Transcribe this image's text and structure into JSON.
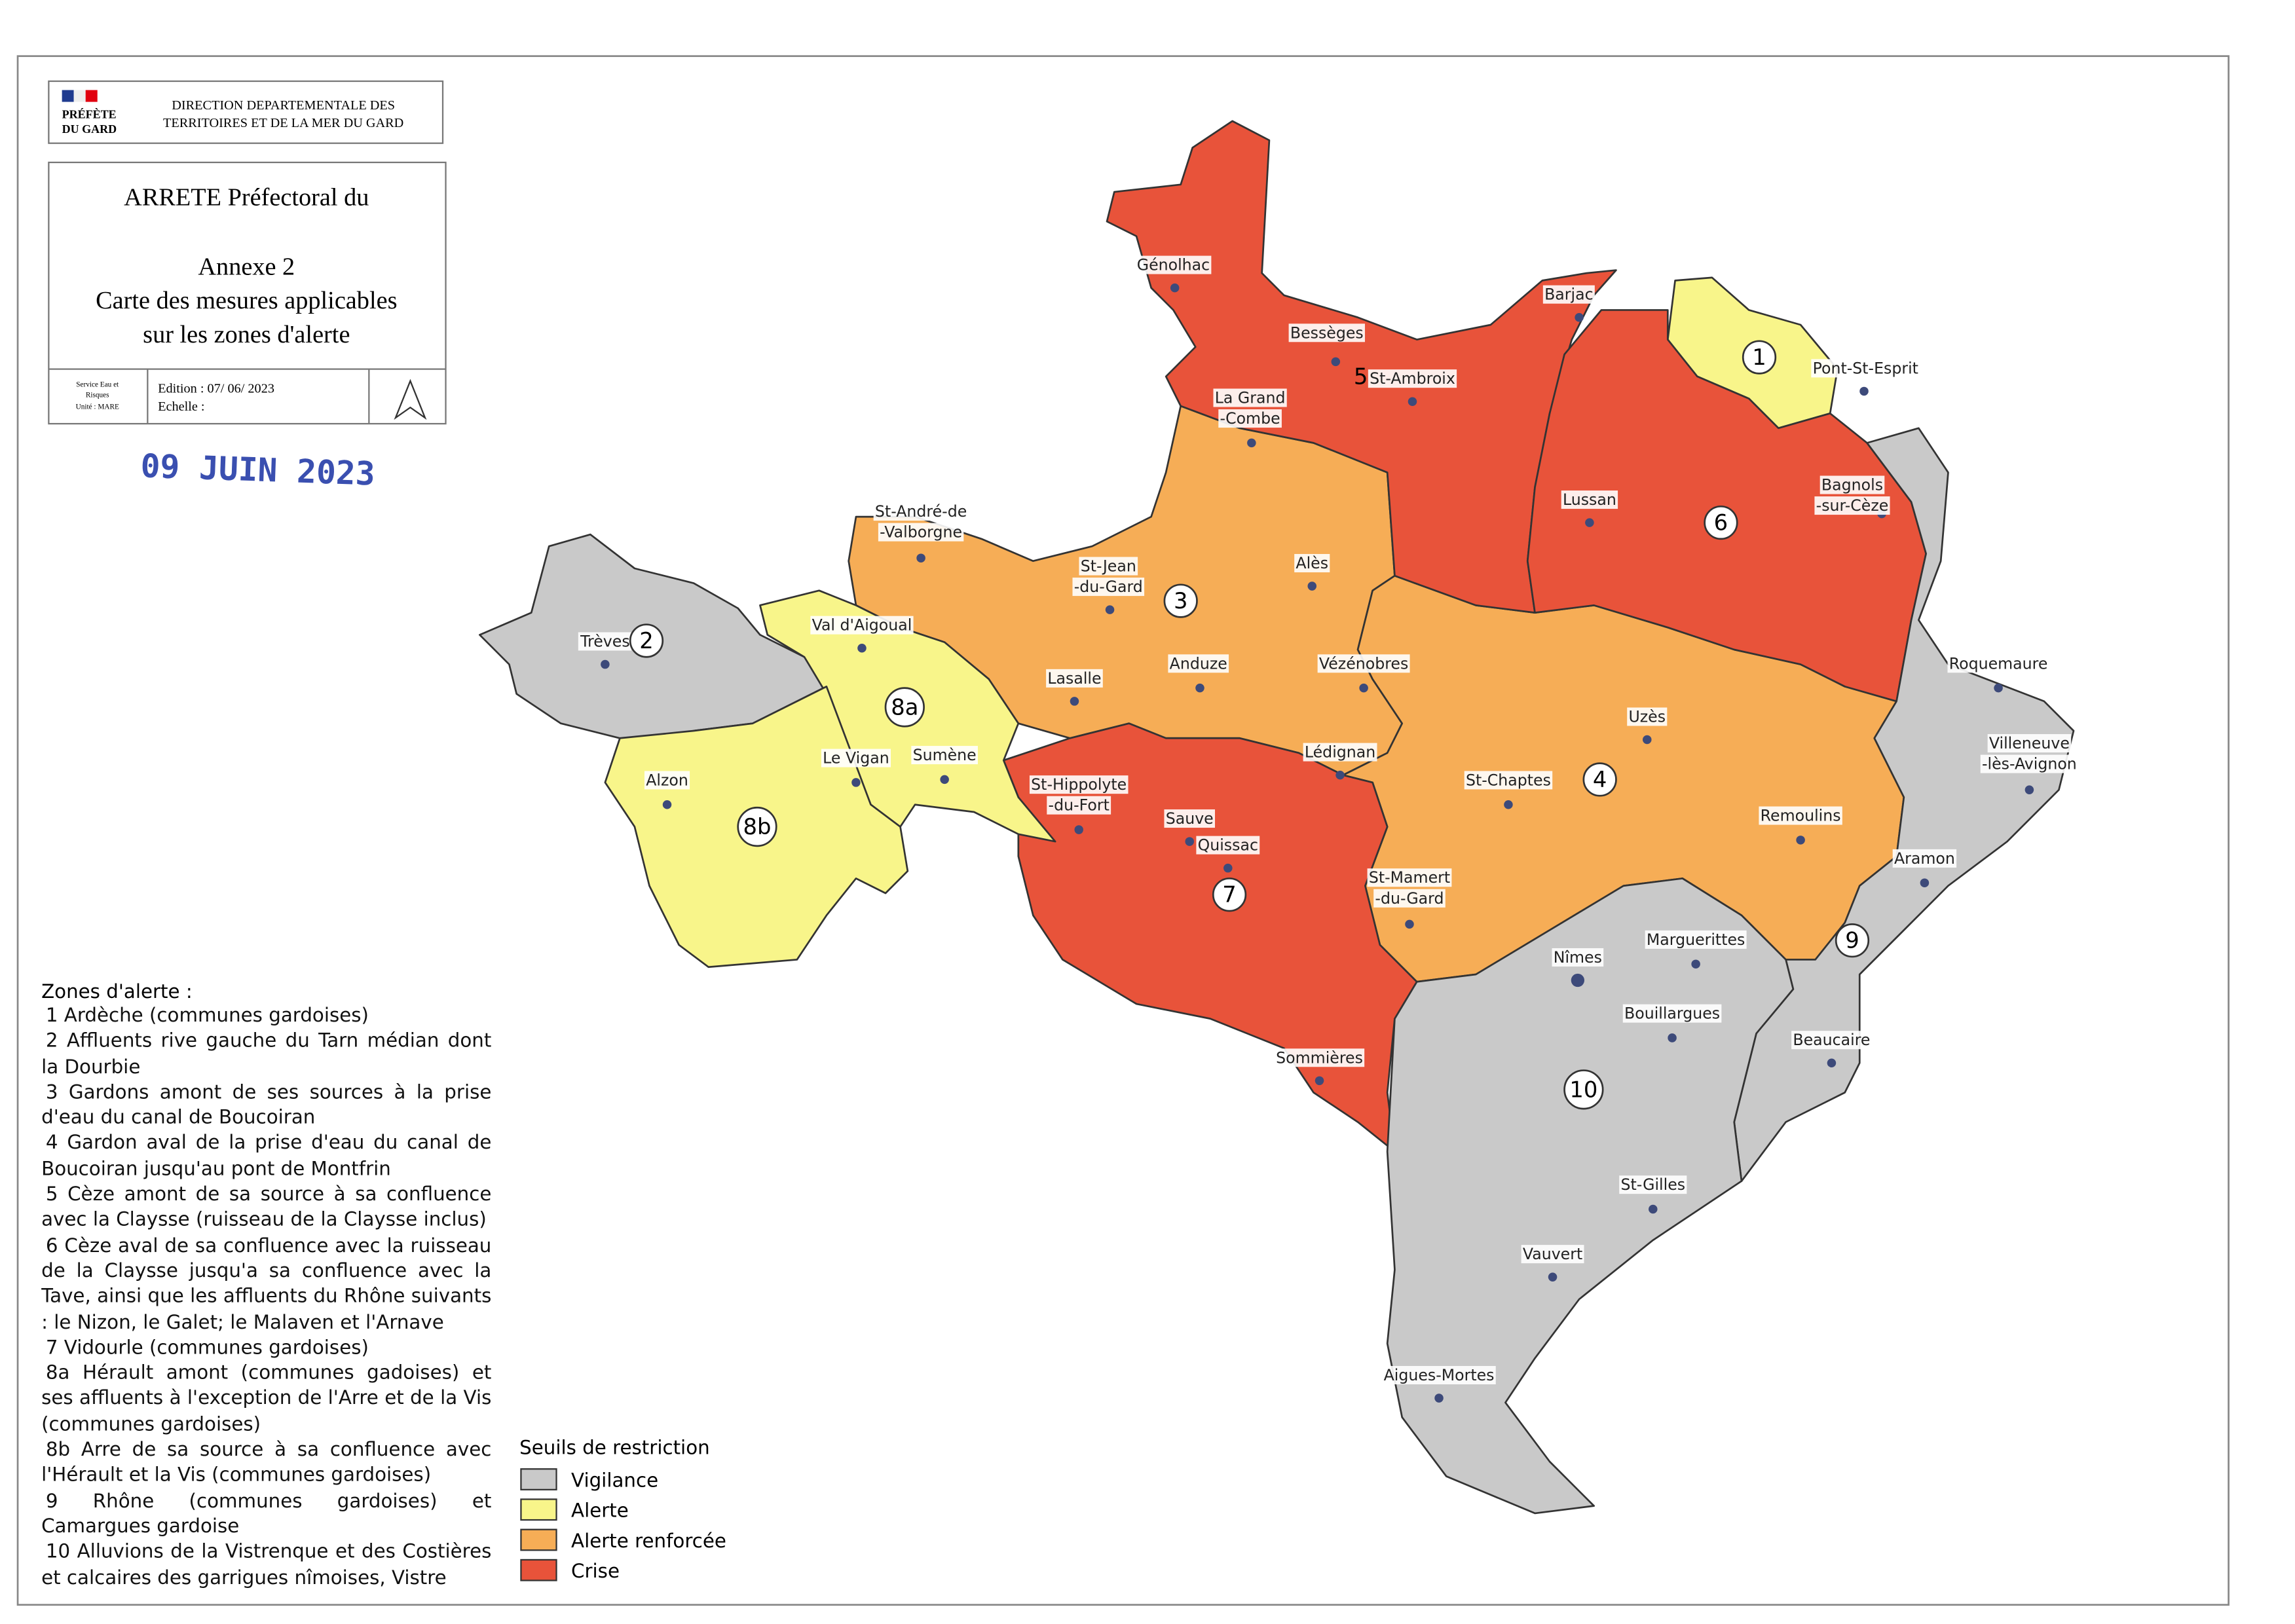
{
  "header": {
    "logo": [
      "PRÉFÈTE",
      "DU GARD"
    ],
    "direction": [
      "DIRECTION DEPARTEMENTALE DES",
      "TERRITOIRES ET DE LA MER DU GARD"
    ]
  },
  "title_block": {
    "arrete": "ARRETE Préfectoral du",
    "annexe": "Annexe 2",
    "title": [
      "Carte des mesures applicables",
      "sur les zones d'alerte"
    ],
    "service": [
      "Service Eau et",
      "Risques",
      "Unité : MARE"
    ],
    "edition": "Edition : 07/ 06/ 2023",
    "echelle": "Echelle :"
  },
  "stamp": "09 JUIN 2023",
  "zones": [
    {
      "label": "1",
      "color": "#f8f58a"
    },
    {
      "label": "2",
      "color": "#c9c9c9"
    },
    {
      "label": "3",
      "color": "#f6ad56"
    },
    {
      "label": "4",
      "color": "#f6ad56"
    },
    {
      "label": "5",
      "color": "#e8533a"
    },
    {
      "label": "6",
      "color": "#e8533a"
    },
    {
      "label": "7",
      "color": "#e8533a"
    },
    {
      "label": "8a",
      "color": "#f8f58a"
    },
    {
      "label": "8b",
      "color": "#f8f58a"
    },
    {
      "label": "9",
      "color": "#c9c9c9"
    },
    {
      "label": "10",
      "color": "#c9c9c9"
    }
  ],
  "towns": [
    {
      "lines": [
        "Génolhac"
      ]
    },
    {
      "lines": [
        "Bessèges"
      ]
    },
    {
      "lines": [
        "St-Ambroix"
      ]
    },
    {
      "lines": [
        "Barjac"
      ]
    },
    {
      "lines": [
        "Pont-St-Esprit"
      ]
    },
    {
      "lines": [
        "La Grand",
        "-Combe"
      ]
    },
    {
      "lines": [
        "St-André-de",
        "-Valborgne"
      ]
    },
    {
      "lines": [
        "St-Jean",
        "-du-Gard"
      ]
    },
    {
      "lines": [
        "Alès"
      ]
    },
    {
      "lines": [
        "Lussan"
      ]
    },
    {
      "lines": [
        "Bagnols",
        "-sur-Cèze"
      ]
    },
    {
      "lines": [
        "Trèves"
      ]
    },
    {
      "lines": [
        "Val d'Aigoual"
      ]
    },
    {
      "lines": [
        "Lasalle"
      ]
    },
    {
      "lines": [
        "Anduze"
      ]
    },
    {
      "lines": [
        "Vézénobres"
      ]
    },
    {
      "lines": [
        "Uzès"
      ]
    },
    {
      "lines": [
        "Roquemaure"
      ]
    },
    {
      "lines": [
        "Alzon"
      ]
    },
    {
      "lines": [
        "Le Vigan"
      ]
    },
    {
      "lines": [
        "Sumène"
      ]
    },
    {
      "lines": [
        "Lédignan"
      ]
    },
    {
      "lines": [
        "St-Hippolyte",
        "-du-Fort"
      ]
    },
    {
      "lines": [
        "St-Chaptes"
      ]
    },
    {
      "lines": [
        "Villeneuve",
        "-lès-Avignon"
      ]
    },
    {
      "lines": [
        "Sauve"
      ]
    },
    {
      "lines": [
        "Quissac"
      ]
    },
    {
      "lines": [
        "Remoulins"
      ]
    },
    {
      "lines": [
        "Aramon"
      ]
    },
    {
      "lines": [
        "St-Mamert",
        "-du-Gard"
      ]
    },
    {
      "lines": [
        "Marguerittes"
      ]
    },
    {
      "lines": [
        "Nîmes"
      ]
    },
    {
      "lines": [
        "Bouillargues"
      ]
    },
    {
      "lines": [
        "Beaucaire"
      ]
    },
    {
      "lines": [
        "Sommières"
      ]
    },
    {
      "lines": [
        "St-Gilles"
      ]
    },
    {
      "lines": [
        "Vauvert"
      ]
    },
    {
      "lines": [
        "Aigues-Mortes"
      ]
    }
  ],
  "alert_zones": {
    "title": "Zones d'alerte :",
    "items": [
      "1 Ardèche (communes gardoises)",
      "2 Affluents rive gauche du Tarn médian dont la Dourbie",
      "3 Gardons amont de ses sources à la prise d'eau du canal de Boucoiran",
      "4 Gardon aval de la prise d'eau du canal de Boucoiran jusqu'au pont de Montfrin",
      "5 Cèze amont de sa source à sa confluence avec la Claysse (ruisseau de la Claysse inclus)",
      "6 Cèze aval de sa confluence avec la ruisseau de la Claysse jusqu'a sa confluence avec la Tave, ainsi que les affluents du Rhône suivants : le Nizon, le Galet; le Malaven et l'Arnave",
      "7 Vidourle (communes gardoises)",
      "8a Hérault amont (communes gadoises) et ses affluents à l'exception de l'Arre et de la Vis (communes gardoises)",
      "8b Arre de sa source à sa confluence avec l'Hérault et la Vis (communes gardoises)",
      "9 Rhône (communes gardoises) et Camargues gardoise",
      "10 Alluvions de la Vistrenque et des Costières et calcaires des garrigues nîmoises, Vistre"
    ]
  },
  "legend": {
    "title": "Seuils de restriction",
    "items": [
      {
        "name": "Vigilance",
        "color": "#c9c9c9"
      },
      {
        "name": "Alerte",
        "color": "#f8f58a"
      },
      {
        "name": "Alerte renforcée",
        "color": "#f6ad56"
      },
      {
        "name": "Crise",
        "color": "#e8533a"
      }
    ]
  }
}
